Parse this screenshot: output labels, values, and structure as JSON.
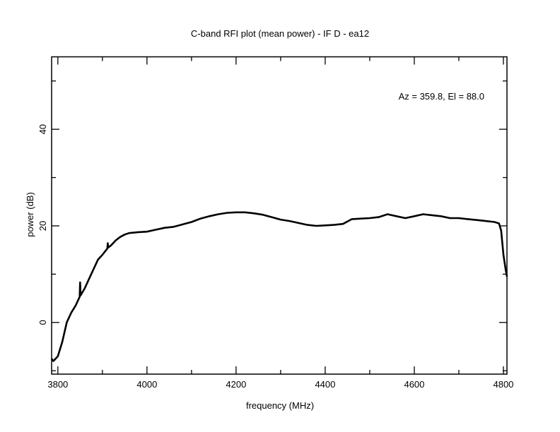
{
  "chart_data": {
    "type": "line",
    "title": "C-band RFI plot (mean power) - IF D - ea12",
    "xlabel": "frequency (MHz)",
    "ylabel": "power (dB)",
    "annotation": "Az = 359.8, El = 88.0",
    "xlim": [
      3786,
      4808
    ],
    "ylim": [
      -10.7,
      55
    ],
    "xticks": [
      3800,
      4000,
      4200,
      4400,
      4600,
      4800
    ],
    "xtick_labels": [
      "3800",
      "4000",
      "4200",
      "4400",
      "4600",
      "4800"
    ],
    "xminor": [
      3900,
      4100,
      4300,
      4500,
      4700
    ],
    "yticks": [
      0,
      20,
      40
    ],
    "ytick_labels": [
      "0",
      "20",
      "40"
    ],
    "yminor": [
      -10,
      10,
      30,
      50
    ],
    "grid": false,
    "series": [
      {
        "name": "mean power",
        "color": "#000000",
        "x": [
          3786,
          3790,
          3800,
          3810,
          3820,
          3830,
          3840,
          3849,
          3850,
          3851,
          3860,
          3870,
          3880,
          3890,
          3900,
          3911,
          3912,
          3913,
          3920,
          3930,
          3940,
          3950,
          3960,
          3980,
          4000,
          4020,
          4040,
          4060,
          4080,
          4100,
          4120,
          4140,
          4160,
          4180,
          4200,
          4220,
          4240,
          4260,
          4280,
          4300,
          4320,
          4340,
          4360,
          4380,
          4400,
          4420,
          4440,
          4460,
          4480,
          4500,
          4520,
          4540,
          4560,
          4580,
          4600,
          4620,
          4640,
          4660,
          4680,
          4700,
          4720,
          4740,
          4760,
          4780,
          4790,
          4795,
          4800,
          4805,
          4808
        ],
        "y": [
          -7.5,
          -8,
          -7,
          -4,
          0,
          2,
          3.5,
          5.3,
          8.3,
          5.6,
          7,
          9,
          11,
          13,
          14,
          15.3,
          16.4,
          15.5,
          16,
          17,
          17.7,
          18.2,
          18.5,
          18.7,
          18.8,
          19.2,
          19.6,
          19.8,
          20.3,
          20.8,
          21.5,
          22,
          22.4,
          22.7,
          22.8,
          22.8,
          22.6,
          22.3,
          21.8,
          21.3,
          21,
          20.6,
          20.2,
          20,
          20.1,
          20.2,
          20.4,
          21.4,
          21.5,
          21.6,
          21.8,
          22.4,
          22,
          21.6,
          22,
          22.4,
          22.2,
          22,
          21.6,
          21.6,
          21.4,
          21.2,
          21,
          20.8,
          20.5,
          19,
          14,
          11,
          9.5
        ]
      }
    ]
  }
}
